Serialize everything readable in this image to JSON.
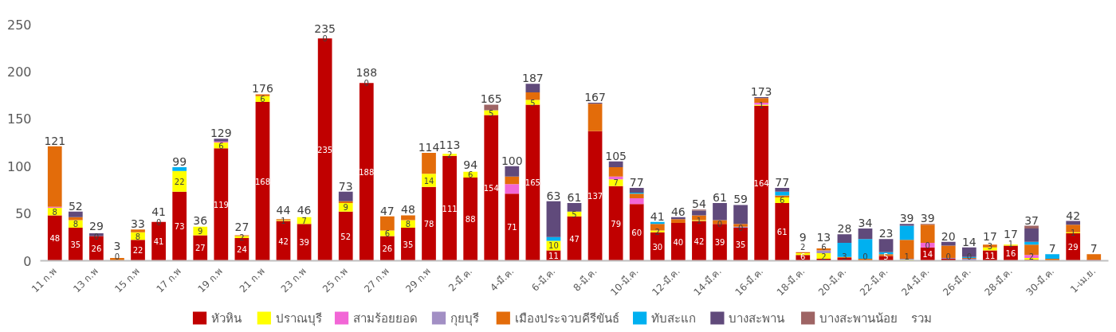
{
  "chart_data": {
    "type": "bar",
    "stacked": true,
    "categories": [
      "11 ก.พ",
      null,
      "13 ก.พ",
      null,
      "15 ก.พ",
      null,
      "17 ก.พ",
      null,
      "19 ก.พ",
      null,
      "21 ก.พ",
      null,
      "23 ก.พ",
      null,
      "25 ก.พ",
      null,
      "27 ก.พ",
      null,
      "29 ก.พ",
      null,
      "2-มี.ค.",
      null,
      "4-มี.ค.",
      null,
      "6-มี.ค.",
      null,
      "8-มี.ค.",
      null,
      "10-มี.ค.",
      null,
      "12-มี.ค.",
      null,
      "14-มี.ค.",
      null,
      "16-มี.ค.",
      null,
      "18-มี.ค.",
      null,
      "20-มี.ค.",
      null,
      "22-มี.ค.",
      null,
      "24-มี.ค.",
      null,
      "26-มี.ค.",
      null,
      "28-มี.ค.",
      null,
      "30-มี.ค.",
      null,
      "1-เม.ย."
    ],
    "series": [
      {
        "name": "หัวหิน",
        "color": "#c00000",
        "values": [
          48,
          35,
          26,
          0,
          22,
          41,
          73,
          27,
          119,
          24,
          168,
          42,
          39,
          235,
          52,
          188,
          26,
          35,
          78,
          111,
          88,
          154,
          71,
          165,
          11,
          47,
          137,
          79,
          60,
          30,
          40,
          42,
          39,
          35,
          164,
          61,
          6,
          2,
          3,
          0,
          5,
          0,
          14,
          2,
          0,
          11,
          16,
          1,
          0,
          29,
          1
        ],
        "value_labels": [
          "48",
          "35",
          "26",
          "0",
          "22",
          "41",
          "73",
          "27",
          "119",
          "24",
          "168",
          "42",
          "39",
          "235",
          "52",
          "188",
          "26",
          "35",
          "78",
          "111",
          "88",
          "154",
          "71",
          "165",
          "11",
          "47",
          "137",
          "79",
          "60",
          "30",
          "40",
          "42",
          "39",
          "35",
          "164",
          "61",
          "6",
          "2",
          "3",
          "0",
          "5",
          null,
          "14",
          null,
          "0",
          "11",
          "16",
          null,
          null,
          "29",
          null
        ]
      },
      {
        "name": "ปราณบุรี",
        "color": "#ffff00",
        "values": [
          8,
          8,
          0,
          0,
          8,
          0,
          22,
          9,
          6,
          2,
          6,
          1,
          7,
          0,
          9,
          0,
          6,
          8,
          14,
          2,
          6,
          5,
          0,
          5,
          10,
          5,
          0,
          7,
          0,
          2,
          0,
          1,
          0,
          0,
          1,
          6,
          2,
          6,
          0,
          0,
          0,
          1,
          0,
          0,
          0,
          3,
          1,
          2,
          0,
          1,
          0
        ],
        "value_labels": [
          "8",
          "8",
          "0",
          null,
          "8",
          "0",
          "22",
          "9",
          "6",
          "2",
          "6",
          "1",
          "7",
          "0",
          "9",
          "0",
          "6",
          "8",
          "14",
          "2",
          "6",
          "5",
          null,
          "5",
          "10",
          "5",
          null,
          "7",
          null,
          "2",
          null,
          "1",
          "0",
          "0",
          "1",
          "6",
          "2",
          "6",
          null,
          null,
          null,
          "1",
          "0",
          "0",
          null,
          "3",
          "1",
          "2",
          null,
          "1",
          null
        ]
      },
      {
        "name": "สามร้อยยอด",
        "color": "#f266d6",
        "values": [
          1,
          0,
          0,
          0,
          0,
          0,
          0,
          0,
          1,
          0,
          0,
          0,
          0,
          0,
          0,
          0,
          0,
          0,
          0,
          0,
          0,
          0,
          10,
          0,
          0,
          0,
          0,
          3,
          6,
          0,
          0,
          0,
          0,
          0,
          2,
          0,
          0,
          0,
          0,
          0,
          0,
          0,
          5,
          0,
          0,
          0,
          0,
          3,
          0,
          0,
          0
        ]
      },
      {
        "name": "กุยบุรี",
        "color": "#a28fc4",
        "values": [
          0,
          0,
          0,
          0,
          0,
          0,
          0,
          0,
          0,
          0,
          0,
          0,
          0,
          0,
          0,
          0,
          0,
          0,
          0,
          0,
          0,
          0,
          0,
          0,
          0,
          0,
          0,
          0,
          0,
          0,
          0,
          0,
          0,
          1,
          0,
          0,
          0,
          3,
          0,
          0,
          0,
          1,
          0,
          1,
          2,
          0,
          0,
          0,
          0,
          0,
          0
        ]
      },
      {
        "name": "เมืองประจวบคีรีขันธ์",
        "color": "#e36c0a",
        "values": [
          64,
          3,
          0,
          3,
          3,
          0,
          0,
          0,
          0,
          1,
          2,
          1,
          0,
          0,
          2,
          0,
          15,
          5,
          22,
          0,
          0,
          0,
          8,
          8,
          0,
          0,
          29,
          10,
          5,
          7,
          4,
          5,
          4,
          3,
          5,
          2,
          1,
          2,
          1,
          2,
          2,
          20,
          19,
          13,
          1,
          3,
          0,
          11,
          2,
          8,
          6
        ]
      },
      {
        "name": "ทับสะแก",
        "color": "#00b0f0",
        "values": [
          0,
          0,
          0,
          0,
          0,
          0,
          4,
          0,
          0,
          0,
          0,
          0,
          0,
          0,
          0,
          0,
          0,
          0,
          0,
          0,
          0,
          0,
          0,
          0,
          4,
          0,
          0,
          0,
          1,
          2,
          0,
          0,
          0,
          0,
          0,
          4,
          0,
          0,
          15,
          21,
          2,
          15,
          0,
          0,
          1,
          0,
          0,
          3,
          5,
          0,
          0
        ]
      },
      {
        "name": "บางสะพาน",
        "color": "#604a7b",
        "values": [
          0,
          6,
          3,
          0,
          0,
          0,
          0,
          0,
          3,
          0,
          0,
          0,
          0,
          0,
          10,
          0,
          0,
          0,
          0,
          0,
          0,
          0,
          11,
          9,
          38,
          9,
          1,
          6,
          5,
          0,
          2,
          5,
          18,
          20,
          1,
          4,
          0,
          0,
          9,
          11,
          14,
          2,
          0,
          4,
          10,
          0,
          0,
          14,
          0,
          4,
          0
        ]
      },
      {
        "name": "บางสะพานน้อย",
        "color": "#9e6464",
        "values": [
          0,
          0,
          0,
          0,
          0,
          0,
          0,
          0,
          0,
          0,
          0,
          0,
          0,
          0,
          0,
          0,
          0,
          0,
          0,
          0,
          0,
          6,
          0,
          0,
          0,
          0,
          0,
          0,
          0,
          0,
          0,
          1,
          0,
          0,
          0,
          0,
          0,
          0,
          0,
          0,
          0,
          0,
          1,
          0,
          0,
          0,
          0,
          3,
          0,
          0,
          0
        ]
      }
    ],
    "totals": [
      "121",
      "52",
      "29",
      "3",
      "33",
      "41",
      "99",
      "36",
      "129",
      "27",
      "176",
      "44",
      "46",
      "235",
      "73",
      "188",
      "47",
      "48",
      "114",
      "113",
      "94",
      "165",
      "100",
      "187",
      "63",
      "61",
      "167",
      "105",
      "77",
      "41",
      "46",
      "54",
      "61",
      "59",
      "173",
      "77",
      "9",
      "13",
      "28",
      "34",
      "23",
      "39",
      "39",
      "20",
      "14",
      "17",
      "17",
      "37",
      "7",
      "42",
      "7"
    ],
    "annotations": [
      "รวม"
    ],
    "ylim": [
      0,
      250
    ],
    "yticks": [
      0,
      50,
      100,
      150,
      200,
      250
    ],
    "grid": false,
    "legend": "bottom"
  }
}
